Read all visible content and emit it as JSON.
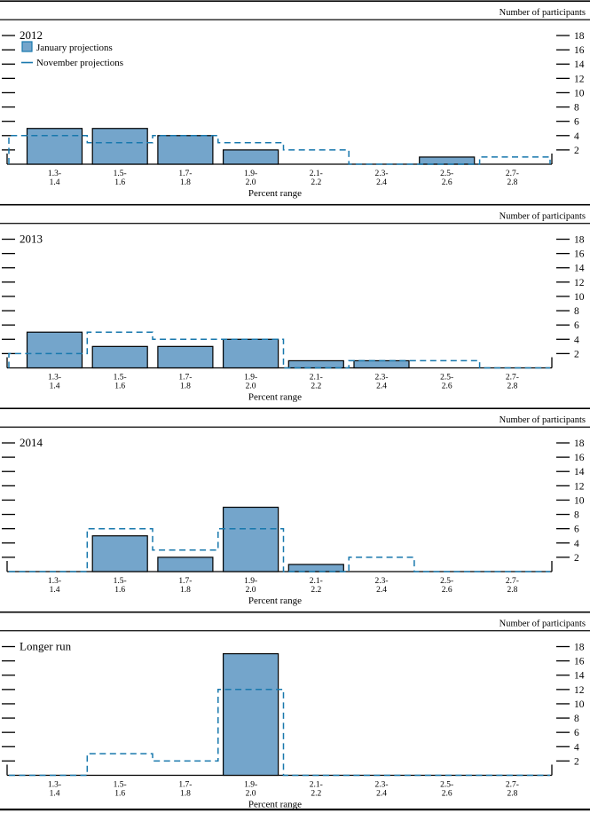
{
  "figure": {
    "right_axis_title": "Number of participants",
    "x_axis_title": "Percent range",
    "legend": [
      {
        "id": "january",
        "label": "January projections"
      },
      {
        "id": "november",
        "label": "November projections"
      }
    ],
    "y_ticks": [
      2,
      4,
      6,
      8,
      10,
      12,
      14,
      16,
      18
    ],
    "colors": {
      "bar_fill": "#74a5cb",
      "bar_stroke": "#000000",
      "dash_line": "#1878ad",
      "axis_line": "#000000",
      "text": "#000000"
    }
  },
  "chart_data": [
    {
      "type": "bar",
      "title": "2012",
      "categories": [
        "1.3-1.4",
        "1.5-1.6",
        "1.7-1.8",
        "1.9-2.0",
        "2.1-2.2",
        "2.3-2.4",
        "2.5-2.6",
        "2.7-2.8"
      ],
      "xlabel": "Percent range",
      "ylabel": "Number of participants",
      "ylim": [
        0,
        18
      ],
      "grid": false,
      "legend_position": "top-left",
      "series": [
        {
          "name": "January projections",
          "style": "filled_bars",
          "values": [
            5,
            5,
            4,
            2,
            0,
            0,
            1,
            0
          ]
        },
        {
          "name": "November projections",
          "style": "dashed_step_outline",
          "values": [
            4,
            3,
            4,
            3,
            2,
            0,
            0,
            1
          ]
        }
      ]
    },
    {
      "type": "bar",
      "title": "2013",
      "categories": [
        "1.3-1.4",
        "1.5-1.6",
        "1.7-1.8",
        "1.9-2.0",
        "2.1-2.2",
        "2.3-2.4",
        "2.5-2.6",
        "2.7-2.8"
      ],
      "xlabel": "Percent range",
      "ylabel": "Number of participants",
      "ylim": [
        0,
        18
      ],
      "grid": false,
      "series": [
        {
          "name": "January projections",
          "style": "filled_bars",
          "values": [
            5,
            3,
            3,
            4,
            1,
            1,
            0,
            0
          ]
        },
        {
          "name": "November projections",
          "style": "dashed_step_outline",
          "values": [
            2,
            5,
            4,
            4,
            0,
            1,
            1,
            0
          ]
        }
      ]
    },
    {
      "type": "bar",
      "title": "2014",
      "categories": [
        "1.3-1.4",
        "1.5-1.6",
        "1.7-1.8",
        "1.9-2.0",
        "2.1-2.2",
        "2.3-2.4",
        "2.5-2.6",
        "2.7-2.8"
      ],
      "xlabel": "Percent range",
      "ylabel": "Number of participants",
      "ylim": [
        0,
        18
      ],
      "grid": false,
      "series": [
        {
          "name": "January projections",
          "style": "filled_bars",
          "values": [
            0,
            5,
            2,
            9,
            1,
            0,
            0,
            0
          ]
        },
        {
          "name": "November projections",
          "style": "dashed_step_outline",
          "values": [
            0,
            6,
            3,
            6,
            0,
            2,
            0,
            0
          ]
        }
      ]
    },
    {
      "type": "bar",
      "title": "Longer run",
      "categories": [
        "1.3-1.4",
        "1.5-1.6",
        "1.7-1.8",
        "1.9-2.0",
        "2.1-2.2",
        "2.3-2.4",
        "2.5-2.6",
        "2.7-2.8"
      ],
      "xlabel": "Percent range",
      "ylabel": "Number of participants",
      "ylim": [
        0,
        18
      ],
      "grid": false,
      "series": [
        {
          "name": "January projections",
          "style": "filled_bars",
          "values": [
            0,
            0,
            0,
            17,
            0,
            0,
            0,
            0
          ]
        },
        {
          "name": "November projections",
          "style": "dashed_step_outline",
          "values": [
            0,
            3,
            2,
            12,
            0,
            0,
            0,
            0
          ]
        }
      ]
    }
  ]
}
